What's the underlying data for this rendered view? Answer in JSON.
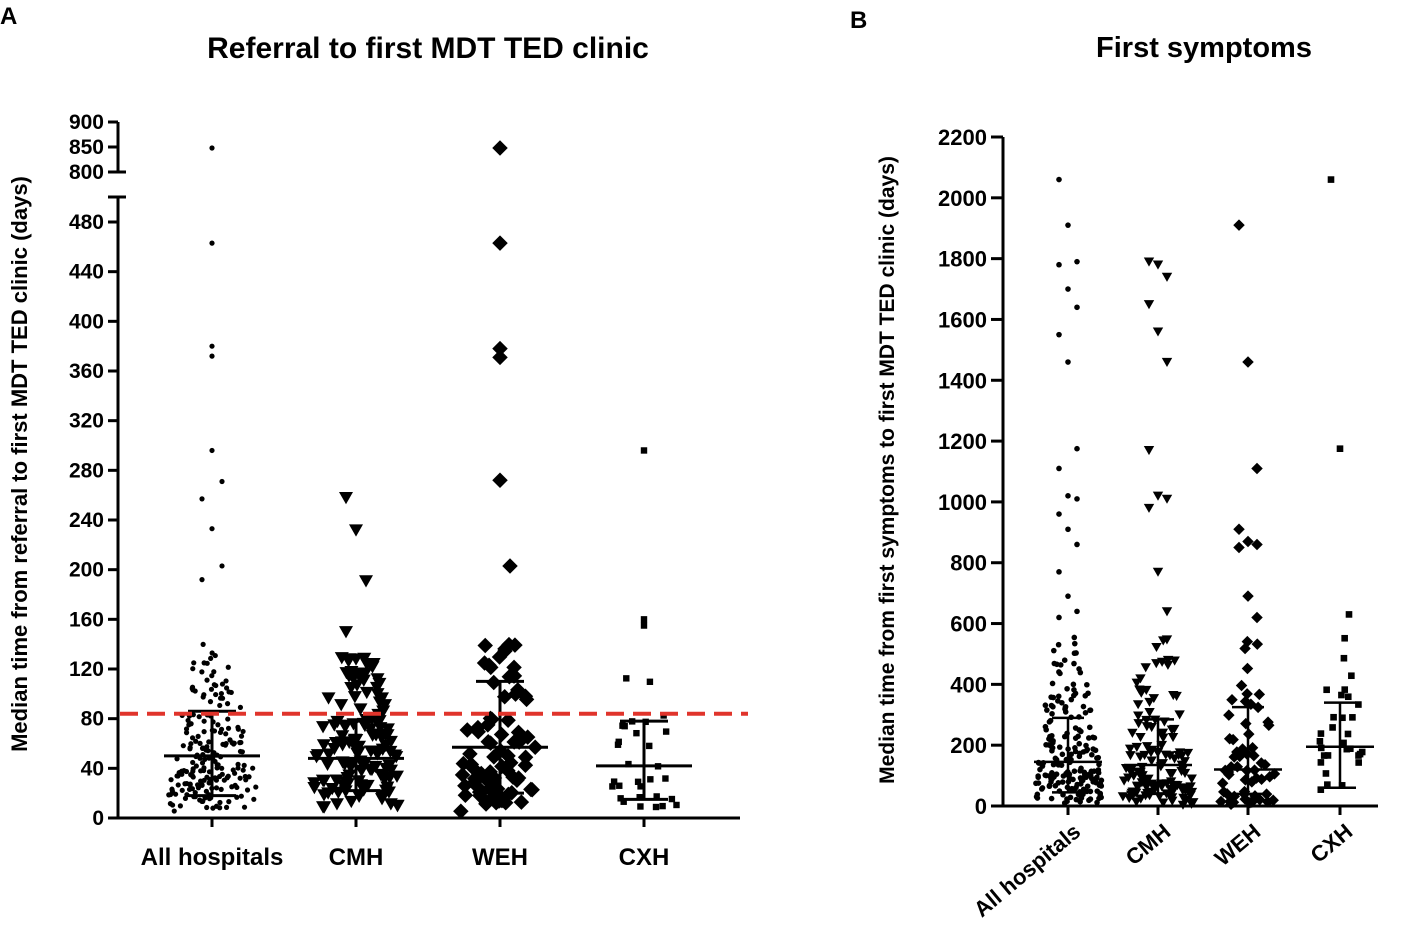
{
  "chart_data": [
    {
      "type": "scatter",
      "panel": "A",
      "title": "Referral to first MDT TED clinic",
      "ylabel": "Median time from referral to first MDT TED clinic (days)",
      "xlabel": "",
      "ylim": [
        0,
        900
      ],
      "axis_break": [
        500,
        800
      ],
      "y_ticks": [
        0,
        40,
        80,
        120,
        160,
        200,
        240,
        280,
        320,
        360,
        400,
        440,
        480,
        800,
        850,
        900
      ],
      "reference_line": {
        "value": 84,
        "color": "#e0342b",
        "style": "dashed"
      },
      "categories": [
        "All hospitals",
        "CMH",
        "WEH",
        "CXH"
      ],
      "series": [
        {
          "name": "All hospitals",
          "marker": "circle",
          "median": 50,
          "q1": 18,
          "q3": 86,
          "outliers": [
            848,
            463,
            380,
            372,
            296,
            271,
            257,
            233,
            203,
            192
          ]
        },
        {
          "name": "CMH",
          "marker": "triangle-down",
          "median": 48,
          "q1": 22,
          "q3": 78,
          "outliers": [
            258,
            232,
            191,
            150,
            128
          ]
        },
        {
          "name": "WEH",
          "marker": "diamond",
          "median": 57,
          "q1": 20,
          "q3": 110,
          "outliers": [
            848,
            463,
            378,
            371,
            272,
            203
          ]
        },
        {
          "name": "CXH",
          "marker": "square",
          "median": 42,
          "q1": 15,
          "q3": 78,
          "outliers": [
            296,
            160,
            155
          ]
        }
      ]
    },
    {
      "type": "scatter",
      "panel": "B",
      "title": "First symptoms",
      "ylabel": "Median time from first symptoms to first MDT TED clinic (days)",
      "xlabel": "",
      "ylim": [
        0,
        2200
      ],
      "y_ticks": [
        0,
        200,
        400,
        600,
        800,
        1000,
        1200,
        1400,
        1600,
        1800,
        2000,
        2200
      ],
      "categories": [
        "All hospitals",
        "CMH",
        "WEH",
        "CXH"
      ],
      "series": [
        {
          "name": "All hospitals",
          "marker": "circle",
          "median": 145,
          "q1": 45,
          "q3": 290,
          "outliers": [
            2060,
            1910,
            1790,
            1780,
            1700,
            1640,
            1550,
            1460,
            1175,
            1110,
            1020,
            1010,
            960,
            910,
            860,
            770,
            690,
            640,
            620
          ]
        },
        {
          "name": "CMH",
          "marker": "triangle-down",
          "median": 135,
          "q1": 40,
          "q3": 285,
          "outliers": [
            1790,
            1780,
            1740,
            1650,
            1560,
            1460,
            1170,
            1020,
            1010,
            980,
            770,
            640
          ]
        },
        {
          "name": "WEH",
          "marker": "diamond",
          "median": 120,
          "q1": 40,
          "q3": 325,
          "outliers": [
            1910,
            1460,
            1110,
            910,
            870,
            860,
            850,
            690,
            620
          ]
        },
        {
          "name": "CXH",
          "marker": "square",
          "median": 195,
          "q1": 60,
          "q3": 340,
          "outliers": [
            2060,
            1175,
            630
          ]
        }
      ]
    }
  ]
}
